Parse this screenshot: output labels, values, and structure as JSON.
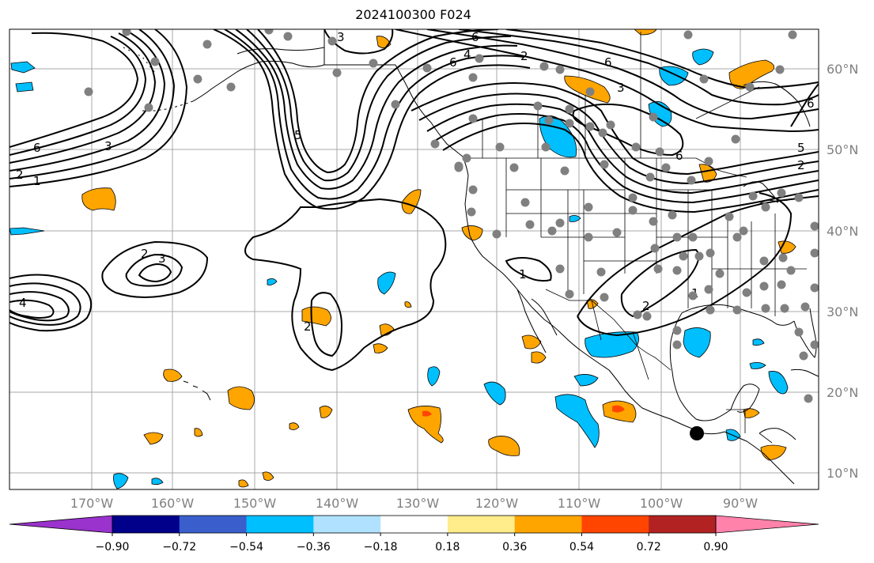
{
  "title": "2024100300 F024",
  "axes": {
    "lon_labels": [
      "170°W",
      "160°W",
      "150°W",
      "140°W",
      "130°W",
      "120°W",
      "110°W",
      "100°W",
      "90°W"
    ],
    "lat_labels": [
      "60°N",
      "50°N",
      "40°N",
      "30°N",
      "20°N",
      "10°N"
    ],
    "label_color": "#808080"
  },
  "colorbar": {
    "colors": [
      "#9a32cd",
      "#00008b",
      "#3a5fcd",
      "#00bfff",
      "#b0e2ff",
      "#ffffff",
      "#ffec8b",
      "#ffa500",
      "#ff4500",
      "#b22222",
      "#ff82ab"
    ],
    "tick_labels": [
      "−0.90",
      "−0.72",
      "−0.54",
      "−0.36",
      "−0.18",
      "0.18",
      "0.36",
      "0.54",
      "0.72",
      "0.90"
    ]
  },
  "contour_labels": [
    "1",
    "2",
    "3",
    "4",
    "5",
    "6"
  ],
  "marker_colors": {
    "station": "#808080",
    "storm": "#000000"
  }
}
